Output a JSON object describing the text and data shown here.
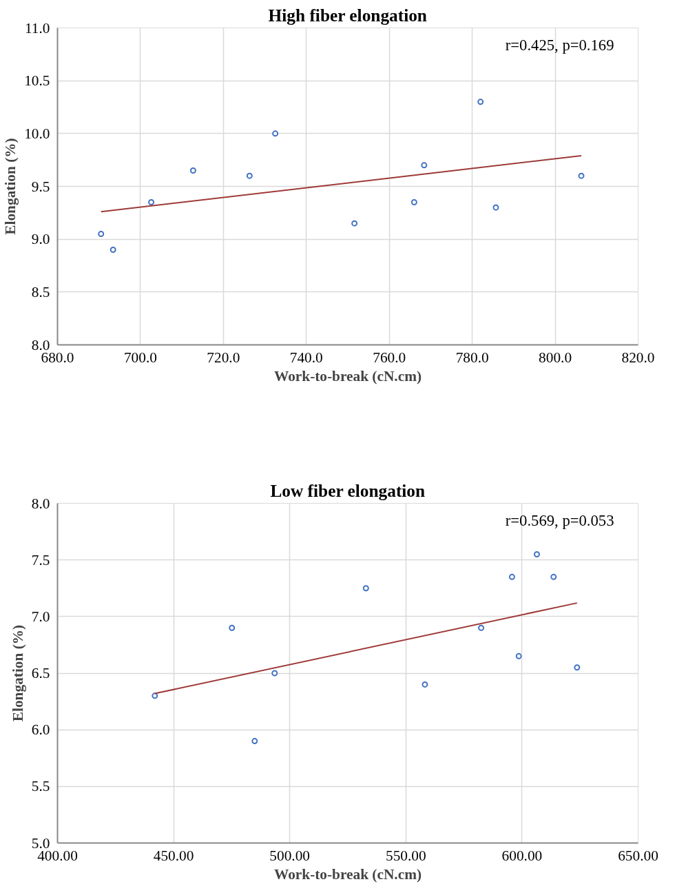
{
  "chart_data": [
    {
      "type": "scatter",
      "title": "High fiber elongation",
      "xlabel": "Work-to-break (cN.cm)",
      "ylabel": "Elongation (%)",
      "annotations": [
        "r=0.425, p=0.169"
      ],
      "series": [
        {
          "color": "#4472c4",
          "marker": "circle",
          "x": [
            690.5,
            693.4,
            702.6,
            712.7,
            726.3,
            732.5,
            751.6,
            766.0,
            768.4,
            782.0,
            785.7,
            806.3
          ],
          "values": [
            9.05,
            8.9,
            9.35,
            9.65,
            9.6,
            10.0,
            9.15,
            9.35,
            9.7,
            10.3,
            9.3,
            9.6
          ]
        },
        {
          "type": "line",
          "marker": "none",
          "color": "#9e3a38",
          "x": [
            690.5,
            806.3
          ],
          "values": [
            9.26,
            9.79
          ]
        }
      ],
      "xlim": [
        680,
        820
      ],
      "ylim": [
        8,
        11
      ],
      "xticks": [
        {
          "value": 680,
          "label": "680.0"
        },
        {
          "value": 700,
          "label": "700.0"
        },
        {
          "value": 720,
          "label": "720.0"
        },
        {
          "value": 740,
          "label": "740.0"
        },
        {
          "value": 760,
          "label": "760.0"
        },
        {
          "value": 780,
          "label": "780.0"
        },
        {
          "value": 800,
          "label": "800.0"
        },
        {
          "value": 820,
          "label": "820.0"
        }
      ],
      "yticks": [
        {
          "value": 8,
          "label": "8.0"
        },
        8.5,
        {
          "value": 9,
          "label": "9.0"
        },
        9.5,
        {
          "value": 10,
          "label": "10.0"
        },
        10.5,
        {
          "value": 11,
          "label": "11.0"
        }
      ],
      "grid": true
    },
    {
      "type": "scatter",
      "title": "Low fiber elongation",
      "xlabel": "Work-to-break (cN.cm)",
      "ylabel": "Elongation (%)",
      "annotations": [
        "r=0.569, p=0.053"
      ],
      "series": [
        {
          "color": "#4472c4",
          "marker": "circle",
          "x": [
            441.9,
            475.1,
            484.9,
            493.5,
            532.8,
            558.2,
            582.4,
            595.7,
            598.6,
            606.4,
            613.6,
            623.7
          ],
          "values": [
            6.3,
            6.9,
            5.9,
            6.5,
            7.25,
            6.4,
            6.9,
            7.35,
            6.65,
            7.55,
            7.35,
            6.55
          ]
        },
        {
          "type": "line",
          "marker": "none",
          "color": "#9e3a38",
          "x": [
            441.9,
            623.7
          ],
          "values": [
            6.32,
            7.12
          ]
        }
      ],
      "xlim": [
        400,
        650
      ],
      "ylim": [
        5,
        8
      ],
      "xticks": [
        {
          "value": 400,
          "label": "400.00"
        },
        {
          "value": 450,
          "label": "450.00"
        },
        {
          "value": 500,
          "label": "500.00"
        },
        {
          "value": 550,
          "label": "550.00"
        },
        {
          "value": 600,
          "label": "600.00"
        },
        {
          "value": 650,
          "label": "650.00"
        }
      ],
      "yticks": [
        {
          "value": 5,
          "label": "5.0"
        },
        5.5,
        {
          "value": 6,
          "label": "6.0"
        },
        6.5,
        {
          "value": 7,
          "label": "7.0"
        },
        7.5,
        {
          "value": 8,
          "label": "8.0"
        }
      ],
      "grid": true
    }
  ]
}
